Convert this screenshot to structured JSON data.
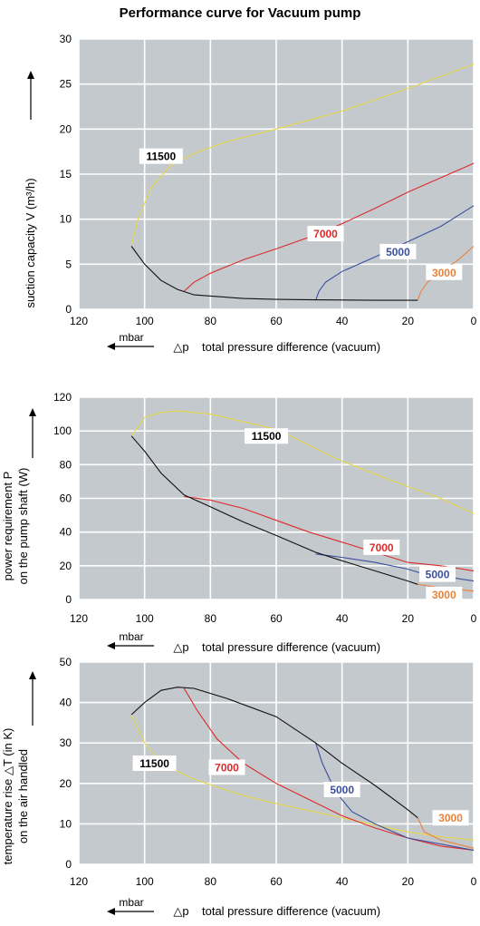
{
  "title": "Performance curve for Vacuum pump",
  "colors": {
    "plot_bg": "#c4c9ce",
    "grid": "#ffffff",
    "s11500": "#e6d84a",
    "s7000": "#dd2a2a",
    "s5000": "#3a4f9e",
    "s3000": "#e8823a",
    "envelope": "#111111"
  },
  "chart_data": [
    {
      "type": "line",
      "xlabel_unit": "mbar",
      "xlabel_delta": "△p",
      "xlabel": "total pressure difference (vacuum)",
      "ylabel": "suction capacity V (m³/h)",
      "xlim": [
        120,
        0
      ],
      "ylim": [
        0,
        30
      ],
      "x_ticks": [
        "120",
        "100",
        "80",
        "60",
        "40",
        "20",
        "0"
      ],
      "y_ticks": [
        "0",
        "5",
        "10",
        "15",
        "20",
        "25",
        "30"
      ],
      "grid": true,
      "series": [
        {
          "name": "11500",
          "color_key": "s11500",
          "label_at": [
            95,
            17
          ],
          "points": [
            [
              104,
              7
            ],
            [
              102,
              10
            ],
            [
              98,
              13.5
            ],
            [
              92,
              16
            ],
            [
              85,
              17.3
            ],
            [
              75,
              18.6
            ],
            [
              60,
              20
            ],
            [
              40,
              22
            ],
            [
              20,
              24.5
            ],
            [
              0,
              27.2
            ]
          ]
        },
        {
          "name": "7000",
          "color_key": "s7000",
          "label_at": [
            45,
            8.4
          ],
          "points": [
            [
              88,
              2
            ],
            [
              85,
              3
            ],
            [
              80,
              4
            ],
            [
              70,
              5.5
            ],
            [
              60,
              6.7
            ],
            [
              50,
              8
            ],
            [
              40,
              9.5
            ],
            [
              30,
              11.2
            ],
            [
              20,
              13
            ],
            [
              10,
              14.6
            ],
            [
              0,
              16.2
            ]
          ]
        },
        {
          "name": "5000",
          "color_key": "s5000",
          "label_at": [
            23,
            6.4
          ],
          "points": [
            [
              48,
              1
            ],
            [
              47,
              2
            ],
            [
              45,
              3
            ],
            [
              40,
              4.2
            ],
            [
              30,
              5.8
            ],
            [
              20,
              7.5
            ],
            [
              10,
              9.2
            ],
            [
              0,
              11.5
            ]
          ]
        },
        {
          "name": "3000",
          "color_key": "s3000",
          "label_at": [
            9,
            4.1
          ],
          "points": [
            [
              17,
              1
            ],
            [
              16,
              2
            ],
            [
              14,
              3
            ],
            [
              10,
              4.2
            ],
            [
              5,
              5.4
            ],
            [
              0,
              7
            ]
          ]
        },
        {
          "name": "",
          "color_key": "envelope",
          "points": [
            [
              104,
              7
            ],
            [
              100,
              5
            ],
            [
              95,
              3.2
            ],
            [
              90,
              2.2
            ],
            [
              85,
              1.6
            ],
            [
              70,
              1.2
            ],
            [
              60,
              1.1
            ],
            [
              48,
              1.05
            ],
            [
              30,
              1
            ],
            [
              17,
              1
            ]
          ]
        }
      ]
    },
    {
      "type": "line",
      "xlabel_unit": "mbar",
      "xlabel_delta": "△p",
      "xlabel": "total pressure difference (vacuum)",
      "ylabel": "power requirement P",
      "ylabel2": "on the pump shaft (W)",
      "xlim": [
        120,
        0
      ],
      "ylim": [
        0,
        120
      ],
      "x_ticks": [
        "120",
        "100",
        "80",
        "60",
        "40",
        "20",
        "0"
      ],
      "y_ticks": [
        "0",
        "20",
        "40",
        "60",
        "80",
        "100",
        "120"
      ],
      "grid": true,
      "series": [
        {
          "name": "11500",
          "color_key": "s11500",
          "label_at": [
            63,
            97
          ],
          "points": [
            [
              104,
              97
            ],
            [
              100,
              108
            ],
            [
              95,
              111
            ],
            [
              90,
              112
            ],
            [
              80,
              110
            ],
            [
              60,
              101
            ],
            [
              40,
              82
            ],
            [
              20,
              67
            ],
            [
              10,
              60
            ],
            [
              0,
              51
            ]
          ]
        },
        {
          "name": "7000",
          "color_key": "s7000",
          "label_at": [
            28,
            31
          ],
          "points": [
            [
              88,
              61
            ],
            [
              80,
              59
            ],
            [
              70,
              54
            ],
            [
              60,
              47
            ],
            [
              50,
              40
            ],
            [
              40,
              34
            ],
            [
              30,
              28
            ],
            [
              20,
              22
            ],
            [
              10,
              20
            ],
            [
              0,
              17
            ]
          ]
        },
        {
          "name": "5000",
          "color_key": "s5000",
          "label_at": [
            11,
            15
          ],
          "points": [
            [
              48,
              27
            ],
            [
              40,
              25
            ],
            [
              30,
              22
            ],
            [
              20,
              18
            ],
            [
              15,
              15
            ],
            [
              10,
              14
            ],
            [
              0,
              11
            ]
          ]
        },
        {
          "name": "3000",
          "color_key": "s3000",
          "label_at": [
            9,
            3
          ],
          "points": [
            [
              17,
              9
            ],
            [
              10,
              7
            ],
            [
              0,
              5
            ]
          ]
        },
        {
          "name": "",
          "color_key": "envelope",
          "points": [
            [
              104,
              97
            ],
            [
              100,
              88
            ],
            [
              95,
              75
            ],
            [
              88,
              62
            ],
            [
              80,
              55
            ],
            [
              70,
              46
            ],
            [
              60,
              38
            ],
            [
              48,
              28
            ],
            [
              40,
              23
            ],
            [
              30,
              17
            ],
            [
              20,
              11
            ],
            [
              17,
              9
            ]
          ]
        }
      ]
    },
    {
      "type": "line",
      "xlabel_unit": "mbar",
      "xlabel_delta": "△p",
      "xlabel": "total pressure difference (vacuum)",
      "ylabel": "temperature rise △T   (in K)",
      "ylabel2": "on the air handled",
      "xlim": [
        120,
        0
      ],
      "ylim": [
        0,
        50
      ],
      "x_ticks": [
        "120",
        "100",
        "80",
        "60",
        "40",
        "20",
        "0"
      ],
      "y_ticks": [
        "0",
        "10",
        "20",
        "30",
        "40",
        "50"
      ],
      "grid": true,
      "series": [
        {
          "name": "11500",
          "color_key": "s11500",
          "label_at": [
            97,
            25
          ],
          "points": [
            [
              104,
              37
            ],
            [
              100,
              30
            ],
            [
              95,
              25
            ],
            [
              85,
              21
            ],
            [
              70,
              17
            ],
            [
              60,
              15
            ],
            [
              40,
              11.5
            ],
            [
              20,
              8
            ],
            [
              10,
              6.8
            ],
            [
              0,
              6
            ]
          ]
        },
        {
          "name": "7000",
          "color_key": "s7000",
          "label_at": [
            75,
            24
          ],
          "points": [
            [
              88,
              43.5
            ],
            [
              84,
              38
            ],
            [
              78,
              31
            ],
            [
              70,
              25
            ],
            [
              60,
              20
            ],
            [
              50,
              16
            ],
            [
              40,
              12
            ],
            [
              30,
              9
            ],
            [
              20,
              6.5
            ],
            [
              10,
              4.5
            ],
            [
              0,
              3.5
            ]
          ]
        },
        {
          "name": "5000",
          "color_key": "s5000",
          "label_at": [
            40,
            18.5
          ],
          "points": [
            [
              48,
              30
            ],
            [
              46,
              25
            ],
            [
              42,
              18
            ],
            [
              37,
              13
            ],
            [
              30,
              10
            ],
            [
              20,
              6.5
            ],
            [
              10,
              5
            ],
            [
              0,
              3.5
            ]
          ]
        },
        {
          "name": "3000",
          "color_key": "s3000",
          "label_at": [
            7,
            11.5
          ],
          "points": [
            [
              17,
              11.5
            ],
            [
              15,
              8
            ],
            [
              10,
              6
            ],
            [
              0,
              4
            ]
          ]
        },
        {
          "name": "",
          "color_key": "envelope",
          "points": [
            [
              104,
              37
            ],
            [
              100,
              40
            ],
            [
              95,
              43
            ],
            [
              90,
              43.8
            ],
            [
              85,
              43.5
            ],
            [
              75,
              41
            ],
            [
              60,
              36.5
            ],
            [
              48,
              30
            ],
            [
              40,
              25
            ],
            [
              30,
              19.5
            ],
            [
              20,
              13.5
            ],
            [
              17,
              11.5
            ]
          ]
        }
      ]
    }
  ]
}
